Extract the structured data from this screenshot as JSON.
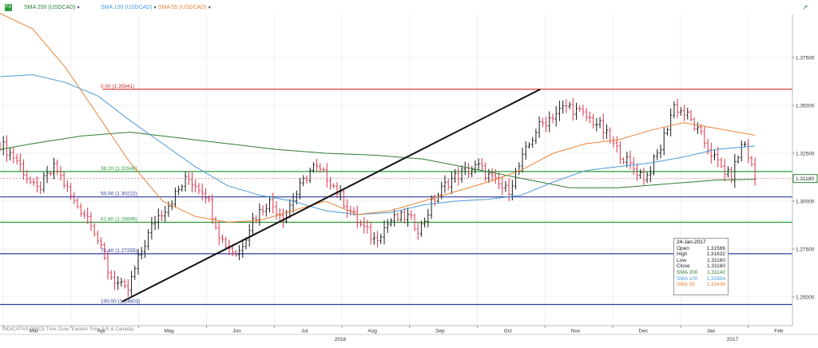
{
  "toolbar": {
    "app_icon": "chart-app-icon",
    "expand_icon": "expand-arrow-icon",
    "legend": [
      {
        "label": "SMA 200 (USDCAD)",
        "color": "#2f7d32"
      },
      {
        "label": "SMA 100 (USDCAD)",
        "color": "#4a9ad8"
      },
      {
        "label": "SMA 55 (USDCAD)",
        "color": "#e8843a"
      }
    ]
  },
  "footer": {
    "note": "INDICATIVE PRICE   Time Zone: Eastern Time (US & Canada)"
  },
  "price_tag": "1.31180",
  "info_box": {
    "date": "24-Jan-2017",
    "rows": [
      {
        "label": "Open",
        "value": "1.31566",
        "color": "#222222"
      },
      {
        "label": "High",
        "value": "1.31632",
        "color": "#222222"
      },
      {
        "label": "Low",
        "value": "1.31160",
        "color": "#222222"
      },
      {
        "label": "Close",
        "value": "1.31180",
        "color": "#222222"
      },
      {
        "label": "SMA 200",
        "value": "1.31142",
        "color": "#2f7d32"
      },
      {
        "label": "SMA 100",
        "value": "1.32884",
        "color": "#4a9ad8"
      },
      {
        "label": "SMA 55",
        "value": "1.33438",
        "color": "#e8843a"
      }
    ]
  },
  "chart_data": {
    "type": "ohlc",
    "ylim": [
      1.235,
      1.3975
    ],
    "y_ticks": [
      "1.37500",
      "1.35000",
      "1.32500",
      "1.30000",
      "1.27500",
      "1.25000"
    ],
    "y_tick_values": [
      1.375,
      1.35,
      1.325,
      1.3,
      1.275,
      1.25
    ],
    "months": [
      "Mar",
      "Apr",
      "May",
      "Jun",
      "Jul",
      "Aug",
      "Sep",
      "Oct",
      "Nov",
      "Dec",
      "Jan",
      "Feb"
    ],
    "years": [
      "2016",
      "2017"
    ],
    "x_range_weeks": [
      0,
      48.7
    ],
    "fib_levels": [
      {
        "label": "0.00 (1.35841)",
        "value": 1.35841,
        "color": "#d42a2a"
      },
      {
        "label": "38.20 (1.31548)",
        "value": 1.31548,
        "color": "#2a9a3a"
      },
      {
        "label": "50.00 (1.30222)",
        "value": 1.30222,
        "color": "#2b3a9a"
      },
      {
        "label": "61.80 (1.28896)",
        "value": 1.28896,
        "color": "#2a9a3a"
      },
      {
        "label": "76.40 (1.27255)",
        "value": 1.27255,
        "color": "#2b3a9a"
      },
      {
        "label": "100.00 (1.24603)",
        "value": 1.24603,
        "color": "#2b3a9a"
      }
    ],
    "trendline": {
      "from": [
        7.5,
        1.2475
      ],
      "to": [
        33.2,
        1.3584
      ]
    },
    "last_close": 1.3118,
    "weekly_close_path": [
      [
        0,
        1.33
      ],
      [
        1.0,
        1.322
      ],
      [
        2.2,
        1.305
      ],
      [
        3.4,
        1.318
      ],
      [
        4.5,
        1.3
      ],
      [
        5.6,
        1.29
      ],
      [
        6.7,
        1.262
      ],
      [
        7.8,
        1.252
      ],
      [
        8.6,
        1.272
      ],
      [
        9.5,
        1.29
      ],
      [
        10.5,
        1.3
      ],
      [
        11.5,
        1.312
      ],
      [
        12.6,
        1.305
      ],
      [
        13.6,
        1.28
      ],
      [
        14.6,
        1.272
      ],
      [
        15.5,
        1.29
      ],
      [
        16.5,
        1.3
      ],
      [
        17.4,
        1.292
      ],
      [
        18.3,
        1.305
      ],
      [
        19.2,
        1.318
      ],
      [
        20.2,
        1.312
      ],
      [
        21.1,
        1.3
      ],
      [
        22.1,
        1.288
      ],
      [
        23.0,
        1.28
      ],
      [
        24.0,
        1.29
      ],
      [
        25.0,
        1.292
      ],
      [
        25.8,
        1.285
      ],
      [
        26.6,
        1.3
      ],
      [
        27.5,
        1.31
      ],
      [
        28.4,
        1.315
      ],
      [
        29.4,
        1.318
      ],
      [
        30.4,
        1.31
      ],
      [
        31.2,
        1.305
      ],
      [
        32.1,
        1.322
      ],
      [
        33.0,
        1.338
      ],
      [
        34.0,
        1.345
      ],
      [
        34.9,
        1.35
      ],
      [
        35.8,
        1.345
      ],
      [
        36.8,
        1.34
      ],
      [
        37.8,
        1.328
      ],
      [
        38.8,
        1.318
      ],
      [
        39.7,
        1.312
      ],
      [
        40.6,
        1.328
      ],
      [
        41.4,
        1.35
      ],
      [
        42.3,
        1.344
      ],
      [
        43.2,
        1.332
      ],
      [
        44.1,
        1.32
      ],
      [
        44.9,
        1.312
      ],
      [
        45.7,
        1.332
      ],
      [
        46.4,
        1.3118
      ]
    ],
    "sma200": [
      [
        0,
        1.327
      ],
      [
        2,
        1.33
      ],
      [
        5,
        1.334
      ],
      [
        8,
        1.336
      ],
      [
        11,
        1.333
      ],
      [
        14,
        1.33
      ],
      [
        17,
        1.327
      ],
      [
        20,
        1.325
      ],
      [
        23,
        1.324
      ],
      [
        26,
        1.322
      ],
      [
        29,
        1.317
      ],
      [
        32,
        1.312
      ],
      [
        35,
        1.307
      ],
      [
        38,
        1.307
      ],
      [
        41,
        1.309
      ],
      [
        44,
        1.311
      ],
      [
        46.4,
        1.3114
      ]
    ],
    "sma100": [
      [
        0,
        1.365
      ],
      [
        2,
        1.366
      ],
      [
        4,
        1.362
      ],
      [
        6,
        1.355
      ],
      [
        8,
        1.342
      ],
      [
        10,
        1.33
      ],
      [
        12,
        1.318
      ],
      [
        14,
        1.308
      ],
      [
        16,
        1.303
      ],
      [
        18,
        1.3
      ],
      [
        20,
        1.295
      ],
      [
        22,
        1.293
      ],
      [
        24,
        1.294
      ],
      [
        26,
        1.298
      ],
      [
        28,
        1.3
      ],
      [
        30,
        1.301
      ],
      [
        32,
        1.303
      ],
      [
        34,
        1.31
      ],
      [
        36,
        1.316
      ],
      [
        38,
        1.318
      ],
      [
        40,
        1.32
      ],
      [
        42,
        1.323
      ],
      [
        44,
        1.327
      ],
      [
        46.4,
        1.3288
      ]
    ],
    "sma55": [
      [
        0,
        1.398
      ],
      [
        2,
        1.39
      ],
      [
        4,
        1.37
      ],
      [
        6,
        1.345
      ],
      [
        8,
        1.32
      ],
      [
        10,
        1.3
      ],
      [
        12,
        1.292
      ],
      [
        14,
        1.289
      ],
      [
        16,
        1.29
      ],
      [
        18,
        1.295
      ],
      [
        20,
        1.3
      ],
      [
        22,
        1.293
      ],
      [
        24,
        1.295
      ],
      [
        26,
        1.3
      ],
      [
        28,
        1.305
      ],
      [
        30,
        1.31
      ],
      [
        32,
        1.316
      ],
      [
        34,
        1.325
      ],
      [
        36,
        1.33
      ],
      [
        38,
        1.332
      ],
      [
        40,
        1.337
      ],
      [
        42,
        1.341
      ],
      [
        44,
        1.338
      ],
      [
        46.4,
        1.3344
      ]
    ]
  }
}
